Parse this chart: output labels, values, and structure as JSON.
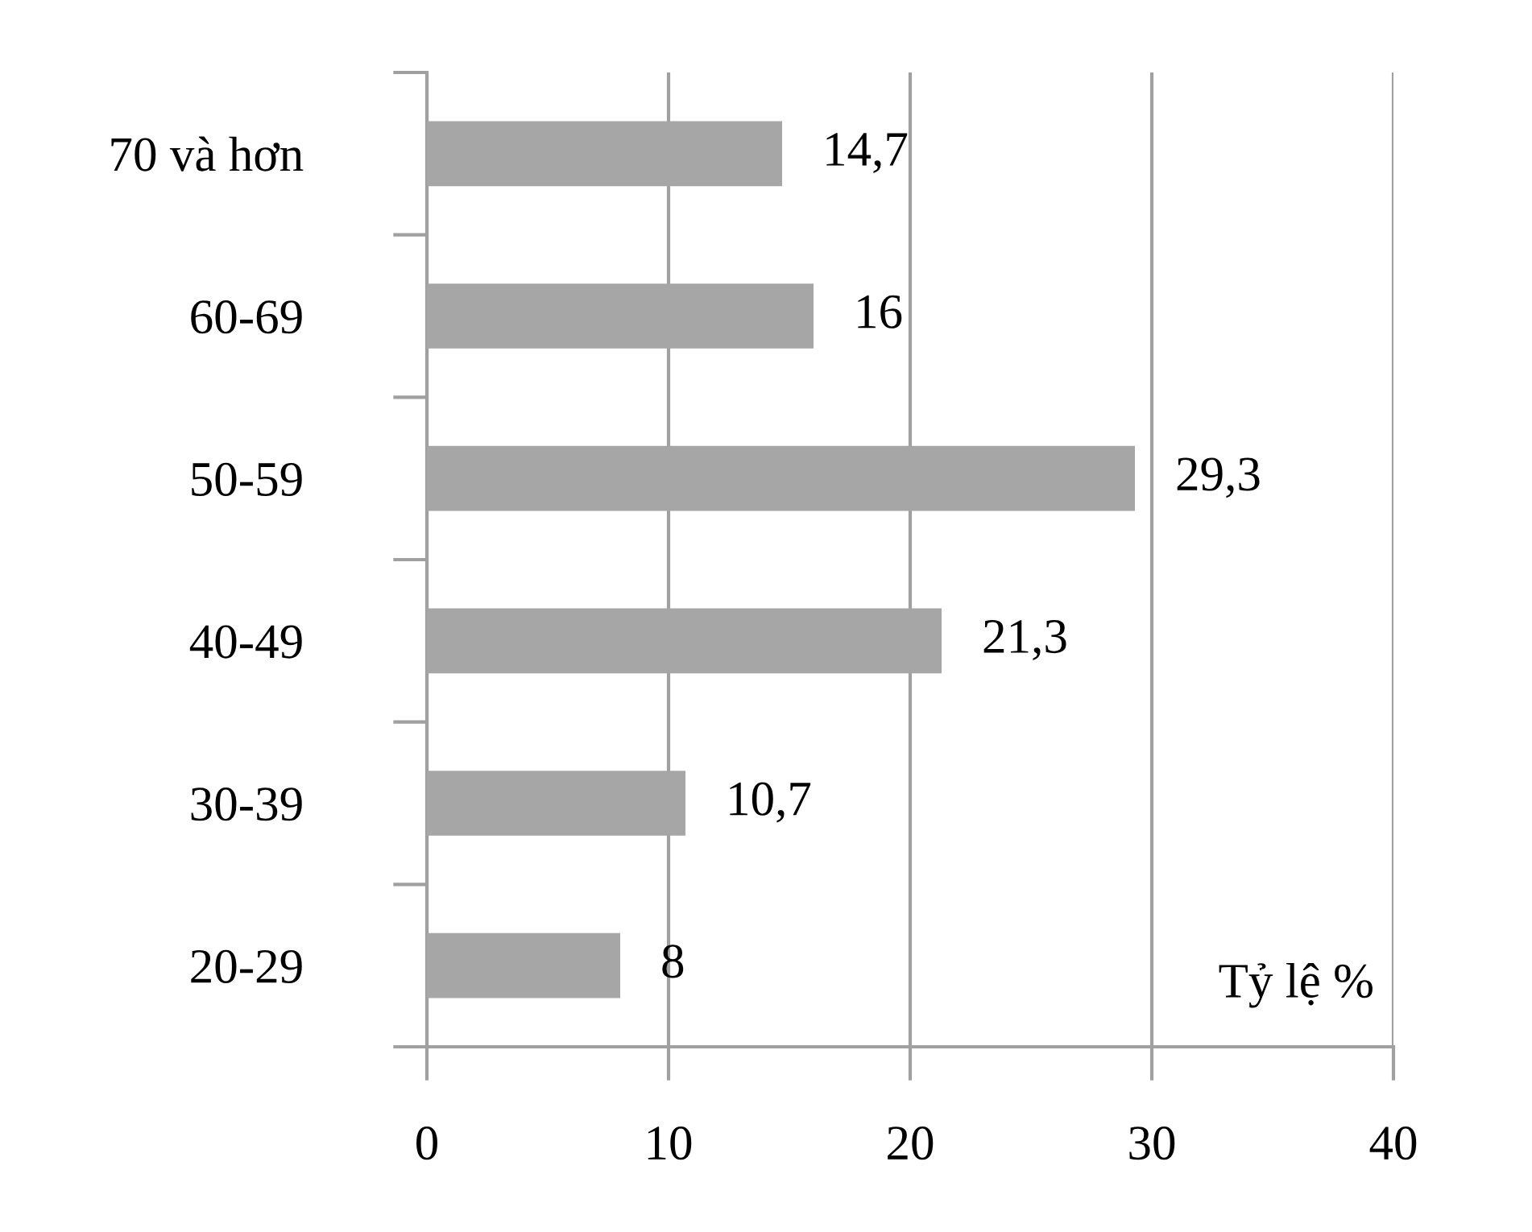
{
  "chart_data": {
    "type": "bar",
    "orientation": "horizontal",
    "categories": [
      "70 và hơn",
      "60-69",
      "50-59",
      "40-49",
      "30-39",
      "20-29"
    ],
    "values": [
      14.7,
      16,
      29.3,
      21.3,
      10.7,
      8
    ],
    "value_labels": [
      "14,7",
      "16",
      "29,3",
      "21,3",
      "10,7",
      "8"
    ],
    "color": "#a6a6a6",
    "xlim": [
      0,
      40
    ],
    "xticks": [
      0,
      10,
      20,
      30,
      40
    ],
    "xlabel": "Tỷ lệ %",
    "grid": "x",
    "legend": false
  }
}
